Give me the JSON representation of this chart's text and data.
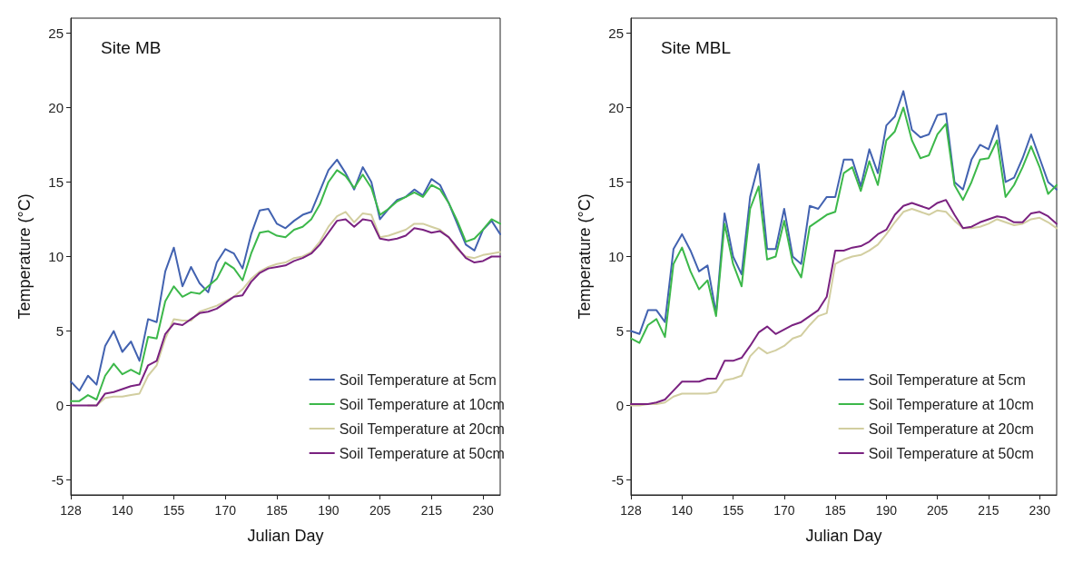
{
  "chart_data": [
    {
      "type": "line",
      "title": "Site MB",
      "xlabel": "Julian Day",
      "ylabel": "Temperature (°C)",
      "categories": [
        "128",
        null,
        null,
        null,
        null,
        null,
        "140",
        null,
        null,
        null,
        null,
        null,
        "155",
        null,
        null,
        null,
        null,
        null,
        "170",
        null,
        null,
        null,
        null,
        null,
        "185",
        null,
        null,
        null,
        null,
        null,
        "190",
        null,
        null,
        null,
        null,
        null,
        "205",
        null,
        null,
        null,
        null,
        null,
        "215",
        null,
        null,
        null,
        null,
        null,
        "230",
        null,
        null
      ],
      "ylim": [
        -6,
        26
      ],
      "yticks": [
        -5,
        0,
        5,
        10,
        15,
        20,
        25
      ],
      "grid": false,
      "legend": "bottom right",
      "marker": "none",
      "line_style": "solid",
      "series": [
        {
          "name": "Soil Temperature at 5cm",
          "color": "#4262b0",
          "values": [
            1.6,
            1.0,
            2.0,
            1.4,
            4.0,
            5.0,
            3.6,
            4.3,
            3.0,
            5.8,
            5.6,
            9.0,
            10.6,
            8.0,
            9.3,
            8.2,
            7.6,
            9.6,
            10.5,
            10.2,
            9.2,
            11.5,
            13.1,
            13.2,
            12.2,
            11.9,
            12.4,
            12.8,
            13.0,
            14.4,
            15.8,
            16.5,
            15.6,
            14.5,
            16.0,
            15.0,
            12.5,
            13.2,
            13.8,
            14.0,
            14.5,
            14.1,
            15.2,
            14.8,
            13.6,
            12.2,
            10.8,
            10.4,
            11.8,
            12.4,
            11.5
          ]
        },
        {
          "name": "Soil Temperature at 10cm",
          "color": "#3cb84a",
          "values": [
            0.3,
            0.3,
            0.7,
            0.4,
            2.0,
            2.8,
            2.1,
            2.4,
            2.1,
            4.6,
            4.5,
            7.0,
            8.0,
            7.3,
            7.6,
            7.5,
            8.0,
            8.5,
            9.6,
            9.2,
            8.4,
            10.2,
            11.6,
            11.7,
            11.4,
            11.3,
            11.8,
            12.0,
            12.5,
            13.5,
            15.0,
            15.8,
            15.4,
            14.6,
            15.5,
            14.6,
            12.8,
            13.2,
            13.7,
            14.0,
            14.3,
            14.0,
            14.8,
            14.5,
            13.6,
            12.4,
            11.0,
            11.2,
            11.8,
            12.5,
            12.2
          ]
        },
        {
          "name": "Soil Temperature at 20cm",
          "color": "#d2cea0",
          "values": [
            null,
            null,
            0,
            0,
            0.5,
            0.6,
            0.6,
            0.7,
            0.8,
            2.0,
            2.7,
            4.5,
            5.8,
            5.7,
            5.7,
            6.3,
            6.5,
            6.7,
            7.0,
            7.3,
            7.8,
            8.5,
            9.0,
            9.3,
            9.5,
            9.6,
            9.9,
            10.0,
            10.3,
            11.0,
            12.0,
            12.7,
            13.0,
            12.3,
            12.9,
            12.8,
            11.3,
            11.4,
            11.6,
            11.8,
            12.2,
            12.2,
            12.0,
            11.8,
            11.3,
            10.5,
            10.0,
            9.9,
            10.1,
            10.2,
            10.3
          ]
        },
        {
          "name": "Soil Temperature at 50cm",
          "color": "#7a2280",
          "values": [
            0,
            0,
            0,
            0,
            0.8,
            0.9,
            1.1,
            1.3,
            1.4,
            2.7,
            3.0,
            4.8,
            5.5,
            5.4,
            5.8,
            6.2,
            6.3,
            6.5,
            6.9,
            7.3,
            7.4,
            8.3,
            8.9,
            9.2,
            9.3,
            9.4,
            9.7,
            9.9,
            10.2,
            10.8,
            11.6,
            12.4,
            12.5,
            12.0,
            12.5,
            12.4,
            11.2,
            11.1,
            11.2,
            11.4,
            11.9,
            11.8,
            11.6,
            11.7,
            11.3,
            10.6,
            9.9,
            9.6,
            9.7,
            10.0,
            10.0
          ]
        }
      ]
    },
    {
      "type": "line",
      "title": "Site MBL",
      "xlabel": "Julian Day",
      "ylabel": "Temperature (°C)",
      "categories": [
        "128",
        null,
        null,
        null,
        null,
        null,
        "140",
        null,
        null,
        null,
        null,
        null,
        "155",
        null,
        null,
        null,
        null,
        null,
        "170",
        null,
        null,
        null,
        null,
        null,
        "185",
        null,
        null,
        null,
        null,
        null,
        "190",
        null,
        null,
        null,
        null,
        null,
        "205",
        null,
        null,
        null,
        null,
        null,
        "215",
        null,
        null,
        null,
        null,
        null,
        "230",
        null,
        null
      ],
      "ylim": [
        -6,
        26
      ],
      "yticks": [
        -5,
        0,
        5,
        10,
        15,
        20,
        25
      ],
      "grid": false,
      "legend": "bottom right",
      "marker": "none",
      "line_style": "solid",
      "series": [
        {
          "name": "Soil Temperature at 5cm",
          "color": "#4262b0",
          "values": [
            5.0,
            4.8,
            6.4,
            6.4,
            5.6,
            10.5,
            11.5,
            10.4,
            9.0,
            9.4,
            6.2,
            12.9,
            10.0,
            8.8,
            14.0,
            16.2,
            10.5,
            10.5,
            13.2,
            10.0,
            9.5,
            13.4,
            13.2,
            14.0,
            14.0,
            16.5,
            16.5,
            14.7,
            17.2,
            15.6,
            18.8,
            19.4,
            21.1,
            18.5,
            18.0,
            18.2,
            19.5,
            19.6,
            15.0,
            14.5,
            16.5,
            17.5,
            17.2,
            18.8,
            15.0,
            15.3,
            16.6,
            18.2,
            16.6,
            15.0,
            14.5
          ]
        },
        {
          "name": "Soil Temperature at 10cm",
          "color": "#3cb84a",
          "values": [
            4.5,
            4.2,
            5.4,
            5.8,
            4.6,
            9.5,
            10.6,
            9.0,
            7.8,
            8.4,
            6.0,
            12.2,
            9.5,
            8.0,
            13.2,
            14.7,
            9.8,
            10.0,
            12.4,
            9.6,
            8.6,
            12.0,
            12.4,
            12.8,
            13.0,
            15.6,
            16.0,
            14.4,
            16.4,
            14.8,
            17.8,
            18.4,
            20.0,
            17.8,
            16.6,
            16.8,
            18.2,
            18.9,
            14.8,
            13.8,
            15.0,
            16.5,
            16.6,
            17.8,
            14.0,
            14.8,
            16.0,
            17.4,
            16.0,
            14.2,
            14.8
          ]
        },
        {
          "name": "Soil Temperature at 20cm",
          "color": "#d2cea0",
          "values": [
            0,
            0,
            0.1,
            0.1,
            0.2,
            0.6,
            0.8,
            0.8,
            0.8,
            0.8,
            0.9,
            1.7,
            1.8,
            2.0,
            3.3,
            3.9,
            3.5,
            3.7,
            4.0,
            4.5,
            4.7,
            5.4,
            6.0,
            6.2,
            9.5,
            9.8,
            10.0,
            10.1,
            10.4,
            10.8,
            11.5,
            12.3,
            13.0,
            13.2,
            13.0,
            12.8,
            13.1,
            13.0,
            12.4,
            11.9,
            11.9,
            12.0,
            12.2,
            12.5,
            12.3,
            12.1,
            12.2,
            12.5,
            12.6,
            12.3,
            11.9
          ]
        },
        {
          "name": "Soil Temperature at 50cm",
          "color": "#7a2280",
          "values": [
            0.1,
            0.1,
            0.1,
            0.2,
            0.4,
            1.0,
            1.6,
            1.6,
            1.6,
            1.8,
            1.8,
            3.0,
            3.0,
            3.2,
            4.0,
            4.9,
            5.3,
            4.8,
            5.1,
            5.4,
            5.6,
            6.0,
            6.4,
            7.3,
            10.4,
            10.4,
            10.6,
            10.7,
            11.0,
            11.5,
            11.8,
            12.8,
            13.4,
            13.6,
            13.4,
            13.2,
            13.6,
            13.8,
            12.8,
            11.9,
            12.0,
            12.3,
            12.5,
            12.7,
            12.6,
            12.3,
            12.3,
            12.9,
            13.0,
            12.7,
            12.2
          ]
        }
      ]
    }
  ]
}
